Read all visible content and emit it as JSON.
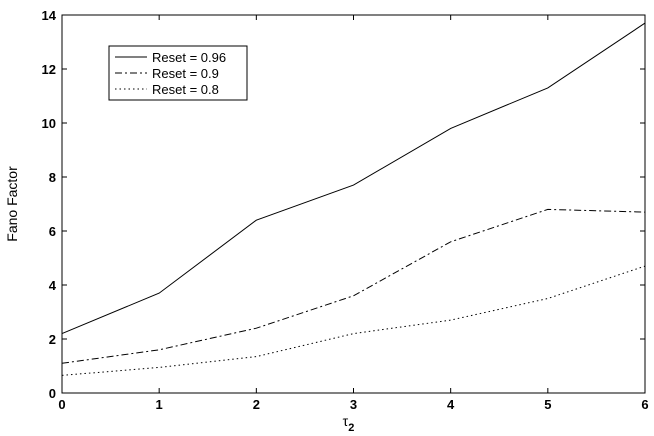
{
  "chart_data": {
    "type": "line",
    "title": "",
    "xlabel": "τ",
    "xlabel_subscript": "2",
    "ylabel": "Fano Factor",
    "xlim": [
      0,
      6
    ],
    "ylim": [
      0,
      14
    ],
    "xticks": [
      "0",
      "1",
      "2",
      "3",
      "4",
      "5",
      "6"
    ],
    "yticks": [
      "0",
      "2",
      "4",
      "6",
      "8",
      "10",
      "12",
      "14"
    ],
    "grid": false,
    "legend_position": "top-left",
    "x": [
      0,
      1,
      2,
      3,
      4,
      5,
      6
    ],
    "series": [
      {
        "name": "Reset = 0.96",
        "style": "solid",
        "values": [
          2.2,
          3.7,
          6.4,
          7.7,
          9.8,
          11.3,
          13.7
        ]
      },
      {
        "name": "Reset = 0.9",
        "style": "dashdot",
        "values": [
          1.1,
          1.6,
          2.4,
          3.6,
          5.6,
          6.8,
          6.7
        ]
      },
      {
        "name": "Reset = 0.8",
        "style": "dotted",
        "values": [
          0.65,
          0.95,
          1.35,
          2.2,
          2.7,
          3.5,
          4.7
        ]
      }
    ],
    "line_color": "#000000"
  }
}
